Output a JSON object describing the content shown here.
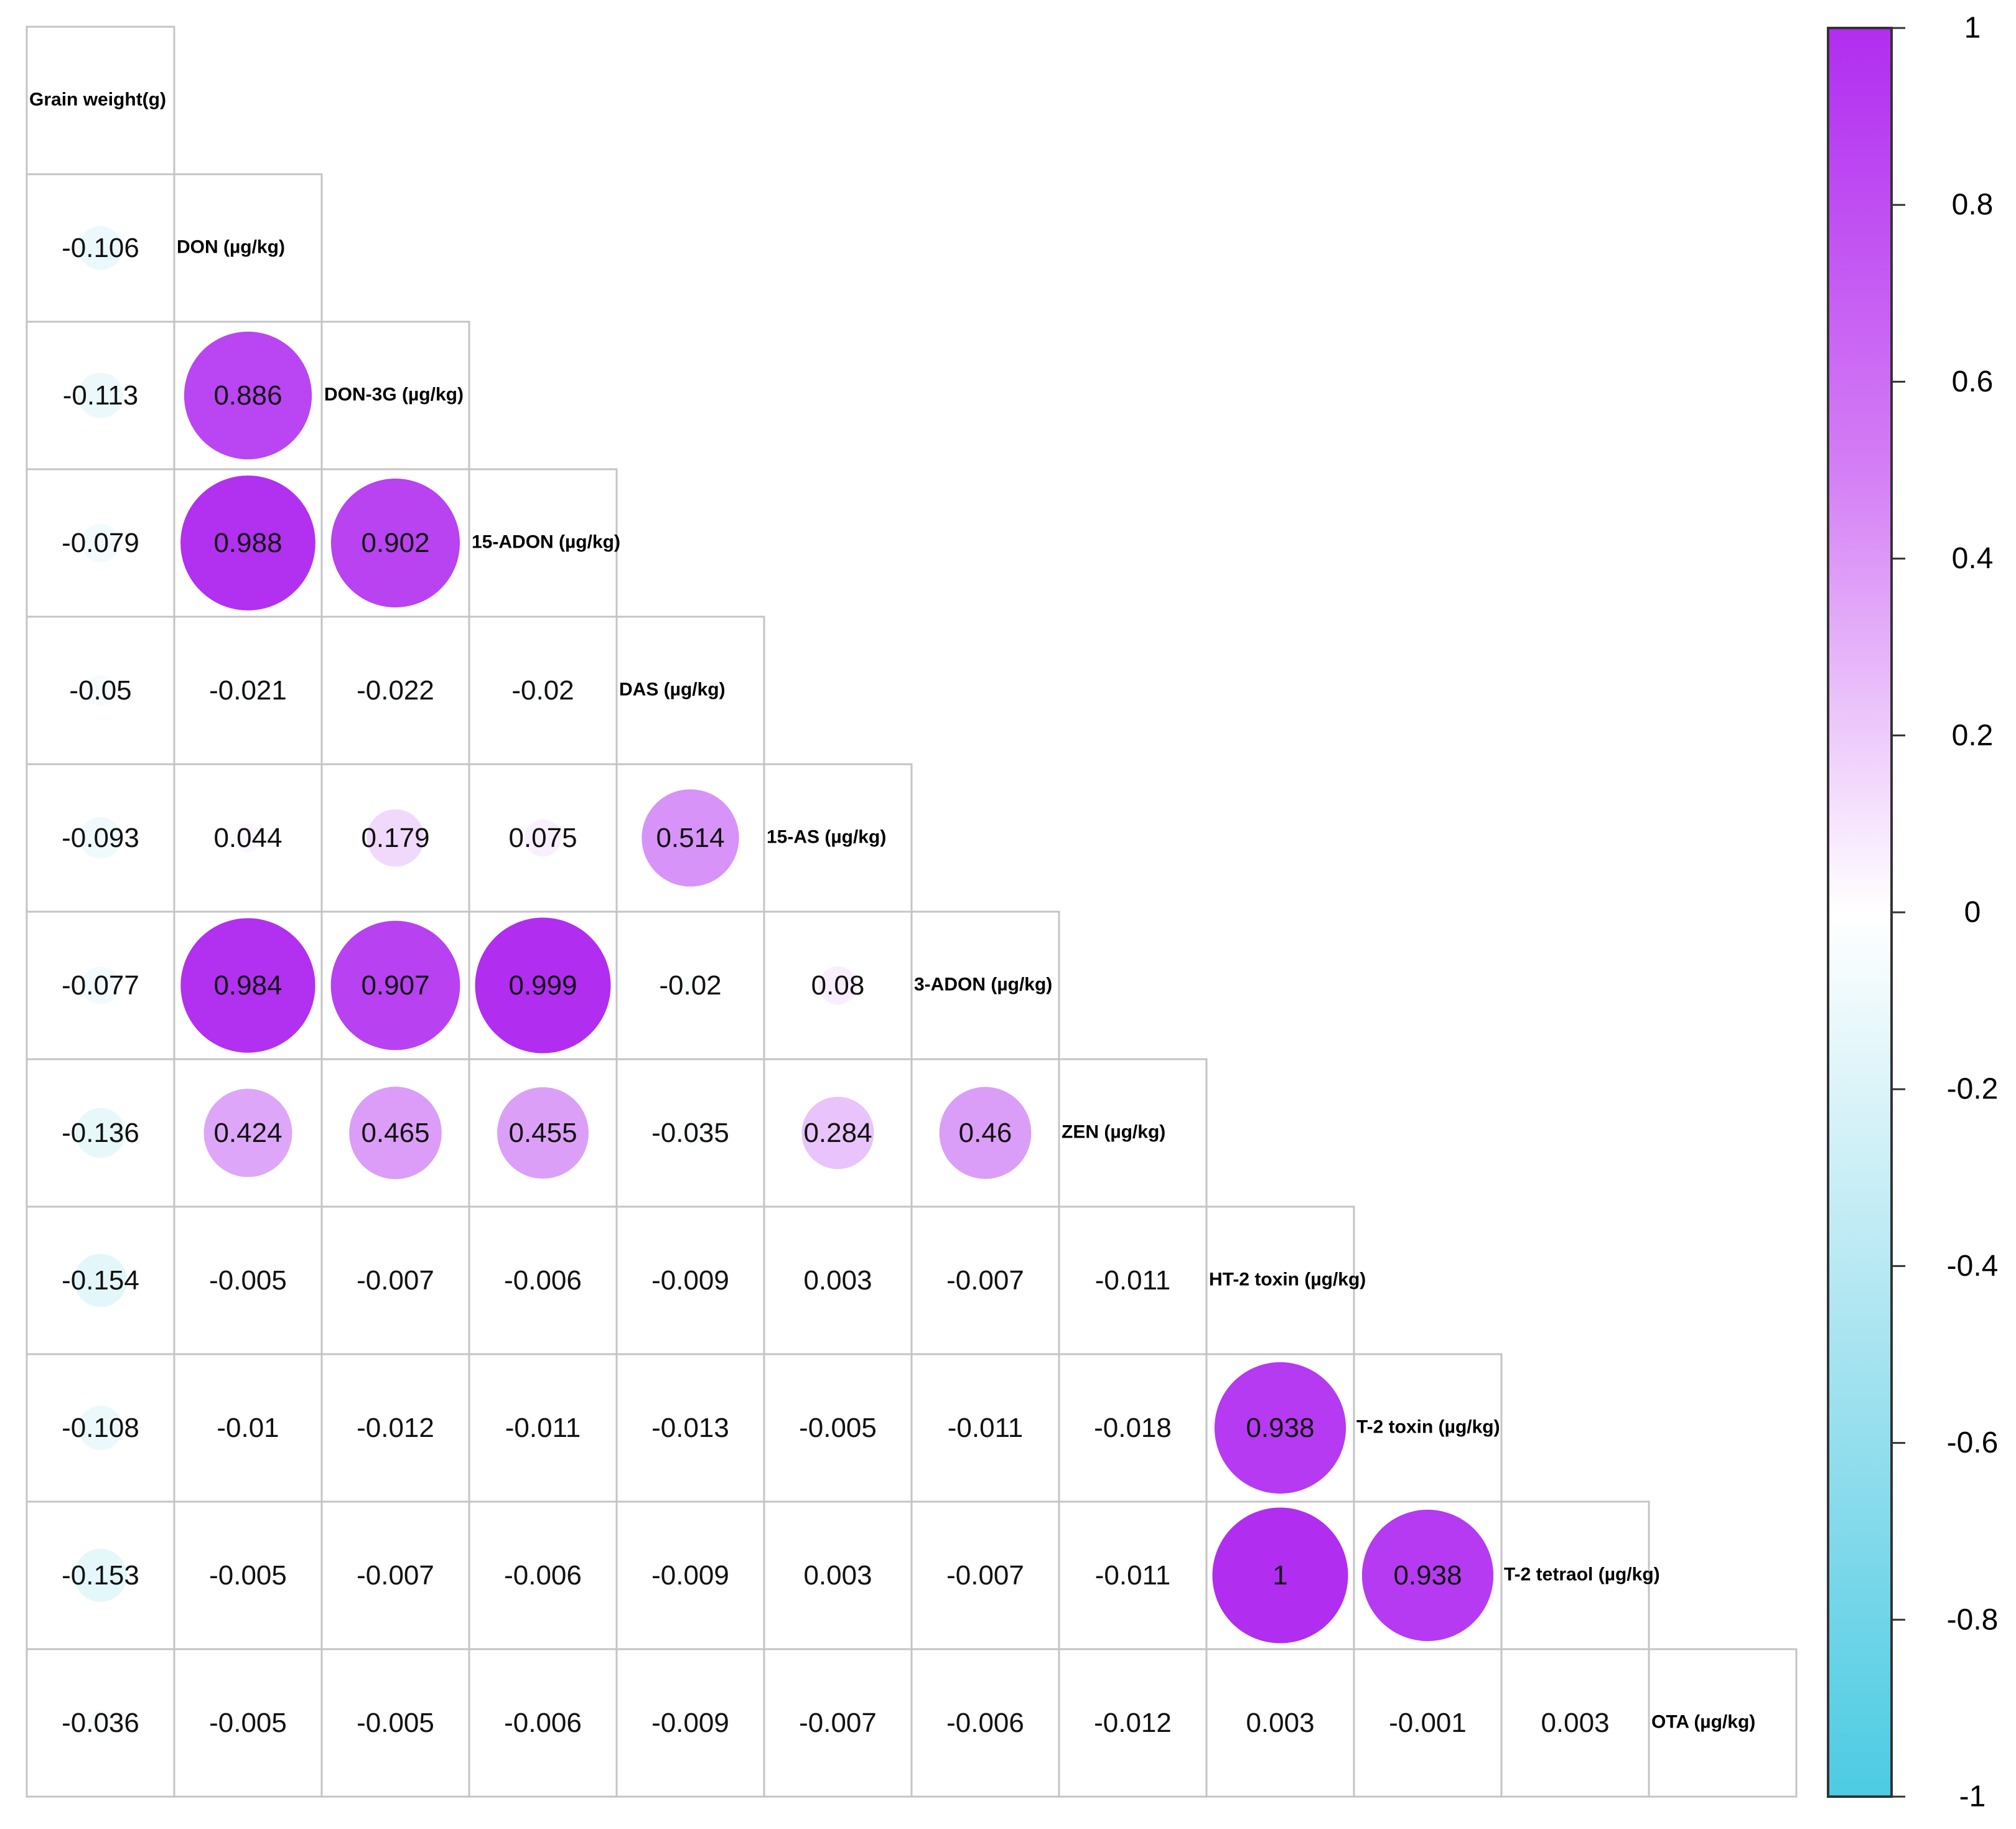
{
  "chart_data": {
    "type": "heatmap",
    "subtype": "correlation-lower-triangle",
    "variables": [
      "Grain weight(g)",
      "DON (µg/kg)",
      "DON-3G (µg/kg)",
      "15-ADON (µg/kg)",
      "DAS (µg/kg)",
      "15-AS (µg/kg)",
      "3-ADON (µg/kg)",
      "ZEN (µg/kg)",
      "HT-2 toxin (µg/kg)",
      "T-2 toxin (µg/kg)",
      "T-2 tetraol (µg/kg)",
      "OTA (µg/kg)"
    ],
    "lower_triangle": [
      [],
      [
        "-0.106"
      ],
      [
        "-0.113",
        "0.886"
      ],
      [
        "-0.079",
        "0.988",
        "0.902"
      ],
      [
        "-0.05",
        "-0.021",
        "-0.022",
        "-0.02"
      ],
      [
        "-0.093",
        "0.044",
        "0.179",
        "0.075",
        "0.514"
      ],
      [
        "-0.077",
        "0.984",
        "0.907",
        "0.999",
        "-0.02",
        "0.08"
      ],
      [
        "-0.136",
        "0.424",
        "0.465",
        "0.455",
        "-0.035",
        "0.284",
        "0.46"
      ],
      [
        "-0.154",
        "-0.005",
        "-0.007",
        "-0.006",
        "-0.009",
        "0.003",
        "-0.007",
        "-0.011"
      ],
      [
        "-0.108",
        "-0.01",
        "-0.012",
        "-0.011",
        "-0.013",
        "-0.005",
        "-0.011",
        "-0.018",
        "0.938"
      ],
      [
        "-0.153",
        "-0.005",
        "-0.007",
        "-0.006",
        "-0.009",
        "0.003",
        "-0.007",
        "-0.011",
        "1",
        "0.938"
      ],
      [
        "-0.036",
        "-0.005",
        "-0.005",
        "-0.006",
        "-0.009",
        "-0.007",
        "-0.006",
        "-0.012",
        "0.003",
        "-0.001",
        "0.003"
      ]
    ],
    "colorbar": {
      "range": [
        -1,
        1
      ],
      "ticks": [
        "1",
        "0.8",
        "0.6",
        "0.4",
        "0.2",
        "0",
        "-0.2",
        "-0.4",
        "-0.6",
        "-0.8",
        "-1"
      ],
      "colors": {
        "positive": "#b12df0",
        "zero": "#ffffff",
        "negative": "#4ccbe3"
      }
    }
  }
}
